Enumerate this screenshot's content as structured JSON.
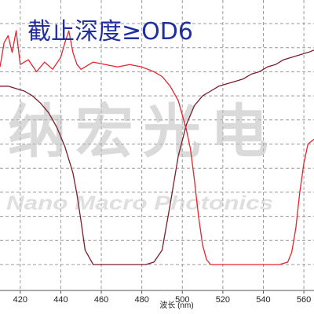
{
  "chart_data": {
    "type": "line",
    "title": "截止深度≥OD6",
    "xlabel": "波长 (nm)",
    "ylabel": "",
    "xlim": [
      410,
      565
    ],
    "ylim": [
      0,
      1
    ],
    "grid": true,
    "x_ticks": [
      "420",
      "440",
      "460",
      "480",
      "500",
      "520",
      "540",
      "560"
    ],
    "series": [
      {
        "color": "#7a1e2c",
        "x": [
          410,
          414,
          418,
          422,
          426,
          430,
          434,
          438,
          442,
          446,
          448,
          450,
          452,
          456,
          460,
          466,
          472,
          478,
          482,
          486,
          490,
          494,
          498,
          502,
          506,
          510,
          514,
          518,
          522,
          526,
          530,
          534,
          538,
          542,
          546,
          550,
          554,
          558,
          562,
          565
        ],
        "y": [
          0.74,
          0.74,
          0.73,
          0.72,
          0.7,
          0.67,
          0.63,
          0.57,
          0.49,
          0.38,
          0.29,
          0.18,
          0.06,
          0.0,
          0.0,
          0.0,
          0.0,
          0.0,
          0.0,
          0.01,
          0.06,
          0.25,
          0.45,
          0.58,
          0.66,
          0.7,
          0.72,
          0.74,
          0.75,
          0.76,
          0.77,
          0.79,
          0.8,
          0.82,
          0.83,
          0.85,
          0.86,
          0.87,
          0.88,
          0.89
        ]
      },
      {
        "color": "#e8242c",
        "x": [
          410,
          412,
          414,
          416,
          418,
          420,
          424,
          428,
          432,
          436,
          440,
          442,
          444,
          446,
          448,
          450,
          456,
          462,
          468,
          474,
          480,
          486,
          490,
          494,
          498,
          500,
          502,
          504,
          506,
          508,
          510,
          512,
          514,
          518,
          524,
          530,
          536,
          542,
          548,
          552,
          554,
          556,
          558,
          560,
          562,
          565
        ],
        "y": [
          0.82,
          0.92,
          0.95,
          0.88,
          0.97,
          0.83,
          0.85,
          0.8,
          0.84,
          0.81,
          0.86,
          0.92,
          0.97,
          0.88,
          0.83,
          0.81,
          0.84,
          0.83,
          0.82,
          0.83,
          0.82,
          0.8,
          0.78,
          0.74,
          0.68,
          0.62,
          0.56,
          0.48,
          0.35,
          0.2,
          0.08,
          0.02,
          0.0,
          0.0,
          0.0,
          0.0,
          0.0,
          0.0,
          0.0,
          0.01,
          0.05,
          0.15,
          0.3,
          0.42,
          0.5,
          0.52
        ]
      }
    ]
  },
  "watermark": {
    "cn_chars": [
      "纳",
      "宏",
      "光",
      "电"
    ],
    "en": "Nano Macro Photonics"
  }
}
